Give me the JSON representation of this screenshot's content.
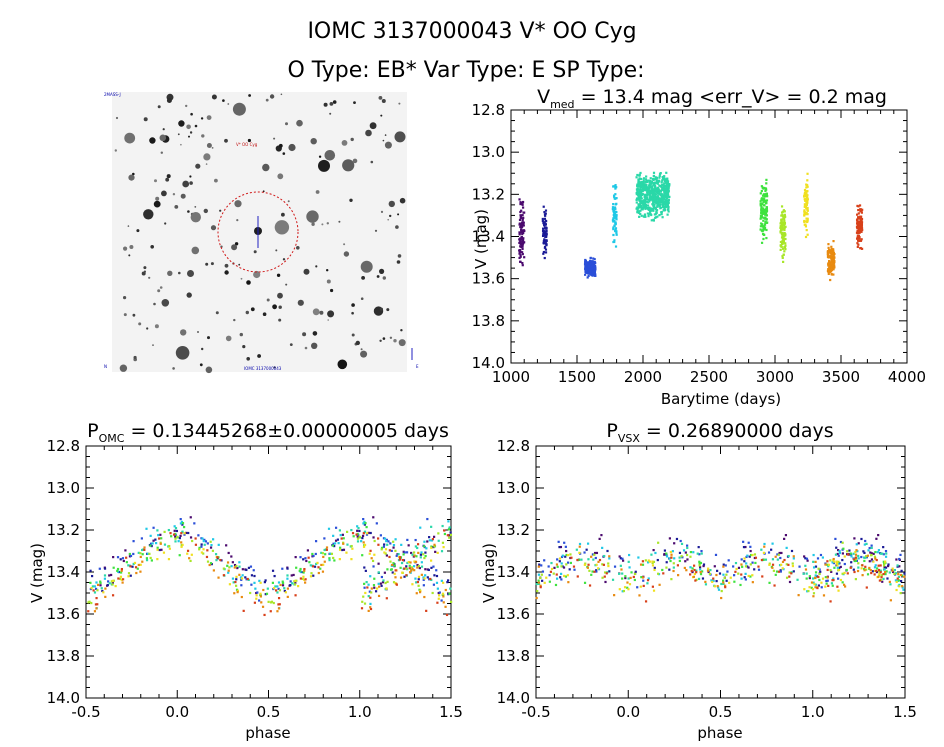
{
  "header": {
    "line1": "IOMC 3137000043    V* OO Cyg",
    "line2": "O Type: EB*   Var Type: E   SP Type:"
  },
  "image_panel": {
    "label_top": "2MASS-J",
    "label_star": "V* OO Cyg",
    "label_bottom": "IOMC 3137000043",
    "label_left": "N",
    "label_right": "E"
  },
  "colors": {
    "purple": "#4b0a6e",
    "navy": "#1a1a96",
    "blue": "#2b4fd8",
    "cyan": "#1fc8e6",
    "teal": "#2ad8a8",
    "green": "#3ee23e",
    "yellowgreen": "#a8e628",
    "yellow": "#f0e020",
    "orange": "#e88a10",
    "red": "#d8401a"
  },
  "chart_data": [
    {
      "type": "scatter",
      "title_main": "V",
      "title_sub": "med",
      "title_rest": " = 13.4 mag <err_V> = 0.2 mag",
      "xlabel": "Barytime (days)",
      "ylabel": "V (mag)",
      "xlim": [
        1000,
        4000
      ],
      "ylim": [
        14.0,
        12.8
      ],
      "x_ticks": [
        "1000",
        "1500",
        "2000",
        "2500",
        "3000",
        "3500",
        "4000"
      ],
      "y_ticks": [
        "12.8",
        "13.0",
        "13.2",
        "13.4",
        "13.6",
        "13.8",
        "14.0"
      ],
      "series": [
        {
          "color_key": "purple",
          "x_range": [
            1060,
            1100
          ],
          "y_center": 13.38,
          "y_spread": 0.22
        },
        {
          "color_key": "navy",
          "x_range": [
            1240,
            1270
          ],
          "y_center": 13.38,
          "y_spread": 0.16
        },
        {
          "color_key": "blue",
          "x_range": [
            1560,
            1640
          ],
          "y_center": 13.55,
          "y_spread": 0.06
        },
        {
          "color_key": "cyan",
          "x_range": [
            1770,
            1800
          ],
          "y_center": 13.3,
          "y_spread": 0.2
        },
        {
          "color_key": "teal",
          "x_range": [
            1950,
            2200
          ],
          "y_center": 13.2,
          "y_spread": 0.15
        },
        {
          "color_key": "green",
          "x_range": [
            2890,
            2940
          ],
          "y_center": 13.28,
          "y_spread": 0.22
        },
        {
          "color_key": "yellowgreen",
          "x_range": [
            3040,
            3080
          ],
          "y_center": 13.38,
          "y_spread": 0.2
        },
        {
          "color_key": "yellow",
          "x_range": [
            3220,
            3250
          ],
          "y_center": 13.25,
          "y_spread": 0.2
        },
        {
          "color_key": "orange",
          "x_range": [
            3400,
            3450
          ],
          "y_center": 13.52,
          "y_spread": 0.12
        },
        {
          "color_key": "red",
          "x_range": [
            3620,
            3660
          ],
          "y_center": 13.35,
          "y_spread": 0.14
        }
      ]
    },
    {
      "type": "scatter",
      "title_main": "P",
      "title_sub": "OMC",
      "title_rest": " = 0.13445268±0.00000005 days",
      "xlabel": "phase",
      "ylabel": "V (mag)",
      "xlim": [
        -0.5,
        1.5
      ],
      "ylim": [
        14.0,
        12.8
      ],
      "x_ticks": [
        "-0.5",
        "0.0",
        "0.5",
        "1.0",
        "1.5"
      ],
      "y_ticks": [
        "12.8",
        "13.0",
        "13.2",
        "13.4",
        "13.6",
        "13.8",
        "14.0"
      ],
      "model": {
        "mean": 13.36,
        "amplitude": 0.13,
        "cycles_per_unit": 1,
        "scatter": 0.12
      },
      "points_per_color": 30
    },
    {
      "type": "scatter",
      "title_main": "P",
      "title_sub": "VSX",
      "title_rest": " = 0.26890000 days",
      "xlabel": "phase",
      "ylabel": "V (mag)",
      "xlim": [
        -0.5,
        1.5
      ],
      "ylim": [
        14.0,
        12.8
      ],
      "x_ticks": [
        "-0.5",
        "0.0",
        "0.5",
        "1.0",
        "1.5"
      ],
      "y_ticks": [
        "12.8",
        "13.0",
        "13.2",
        "13.4",
        "13.6",
        "13.8",
        "14.0"
      ],
      "model": {
        "mean": 13.38,
        "amplitude": 0.04,
        "cycles_per_unit": 2,
        "scatter": 0.14
      },
      "points_per_color": 30
    }
  ]
}
